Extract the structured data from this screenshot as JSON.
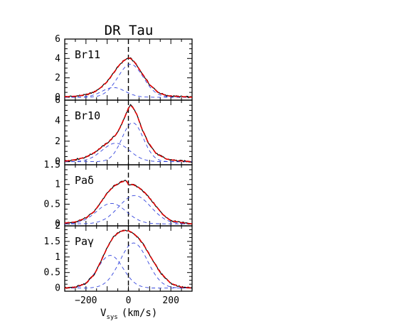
{
  "title": "DR Tau",
  "colors": {
    "observed": "#000000",
    "model": "#e00000",
    "components": "#3344dd"
  },
  "chart_data": [
    {
      "type": "line",
      "panel": "Br11",
      "xlabel_main": "V",
      "xlabel_sub": "sys",
      "xlabel_unit": "(km/s)",
      "xlim": [
        -300,
        300
      ],
      "ylim": [
        -0.3,
        6
      ],
      "yticks": [
        0,
        2,
        4,
        6
      ],
      "yticklabels": [
        "0",
        "2",
        "4",
        "6"
      ],
      "components": [
        {
          "amp": 3.4,
          "center": 10,
          "sigma": 60
        },
        {
          "amp": 1.0,
          "center": -70,
          "sigma": 55
        }
      ],
      "observed": {
        "x": [
          -300,
          -250,
          -200,
          -160,
          -130,
          -100,
          -80,
          -60,
          -40,
          -20,
          0,
          10,
          30,
          60,
          100,
          140,
          180,
          220,
          260,
          300
        ],
        "y": [
          0.05,
          0.1,
          0.25,
          0.55,
          1.0,
          1.6,
          2.2,
          2.8,
          3.4,
          3.8,
          4.05,
          4.0,
          3.6,
          2.6,
          1.3,
          0.5,
          0.15,
          0.1,
          0.05,
          0.0
        ]
      }
    },
    {
      "type": "line",
      "panel": "Br10",
      "xlim": [
        -300,
        300
      ],
      "ylim": [
        -0.3,
        6
      ],
      "yticks": [
        0,
        2,
        4,
        6
      ],
      "yticklabels": [
        "0",
        "2",
        "4",
        "6"
      ],
      "components": [
        {
          "amp": 3.8,
          "center": 20,
          "sigma": 50
        },
        {
          "amp": 1.8,
          "center": -60,
          "sigma": 65
        }
      ],
      "observed": {
        "x": [
          -300,
          -250,
          -200,
          -160,
          -120,
          -90,
          -60,
          -40,
          -20,
          0,
          10,
          20,
          40,
          60,
          90,
          130,
          180,
          230,
          300
        ],
        "y": [
          0.05,
          0.2,
          0.45,
          0.9,
          1.5,
          2.0,
          2.6,
          3.3,
          4.2,
          5.2,
          5.5,
          5.3,
          4.6,
          3.4,
          2.0,
          0.8,
          0.25,
          0.1,
          0.0
        ]
      }
    },
    {
      "type": "line",
      "panel": "Paδ",
      "xlim": [
        -300,
        300
      ],
      "ylim": [
        -0.05,
        1.5
      ],
      "yticks": [
        0,
        0.5,
        1,
        1.5
      ],
      "yticklabels": [
        "0",
        "0.5",
        "1",
        "1.5"
      ],
      "components": [
        {
          "amp": 0.72,
          "center": 30,
          "sigma": 75
        },
        {
          "amp": 0.52,
          "center": -80,
          "sigma": 70
        }
      ],
      "observed": {
        "x": [
          -300,
          -250,
          -200,
          -160,
          -130,
          -100,
          -70,
          -40,
          -10,
          0,
          20,
          50,
          80,
          120,
          160,
          200,
          250,
          300
        ],
        "y": [
          0.02,
          0.05,
          0.15,
          0.32,
          0.55,
          0.78,
          0.95,
          1.05,
          1.1,
          1.0,
          1.0,
          0.92,
          0.78,
          0.52,
          0.25,
          0.08,
          0.03,
          0.0
        ]
      }
    },
    {
      "type": "line",
      "panel": "Paγ",
      "xlim": [
        -300,
        300
      ],
      "ylim": [
        -0.1,
        2
      ],
      "yticks": [
        0,
        0.5,
        1,
        1.5,
        2
      ],
      "yticklabels": [
        "0",
        "0.5",
        "1",
        "1.5",
        "2"
      ],
      "xticks": [
        -200,
        0,
        200
      ],
      "xticklabels": [
        "−200",
        "0",
        "200"
      ],
      "components": [
        {
          "amp": 1.45,
          "center": 25,
          "sigma": 65
        },
        {
          "amp": 1.05,
          "center": -85,
          "sigma": 60
        }
      ],
      "observed": {
        "x": [
          -300,
          -250,
          -200,
          -160,
          -130,
          -100,
          -70,
          -40,
          -10,
          0,
          20,
          50,
          80,
          110,
          150,
          200,
          250,
          300
        ],
        "y": [
          0.0,
          0.03,
          0.15,
          0.45,
          0.85,
          1.3,
          1.65,
          1.82,
          1.86,
          1.84,
          1.78,
          1.6,
          1.3,
          0.95,
          0.5,
          0.15,
          0.03,
          0.0
        ]
      }
    }
  ]
}
